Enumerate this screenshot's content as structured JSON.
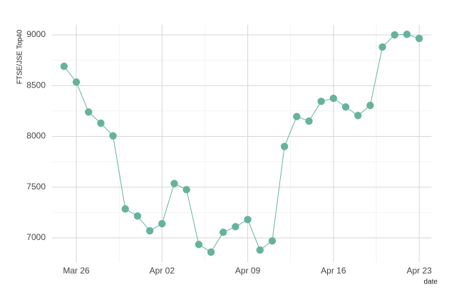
{
  "chart_data": {
    "type": "line",
    "x_label": "date",
    "y_label": "FTSE/JSE Top40",
    "x": [
      "03-25",
      "03-26",
      "03-27",
      "03-28",
      "03-29",
      "03-30",
      "03-31",
      "04-01",
      "04-02",
      "04-03",
      "04-04",
      "04-05",
      "04-06",
      "04-07",
      "04-08",
      "04-09",
      "04-10",
      "04-11",
      "04-12",
      "04-13",
      "04-14",
      "04-15",
      "04-16",
      "04-17",
      "04-18",
      "04-19",
      "04-20",
      "04-21",
      "04-22",
      "04-23"
    ],
    "series": [
      {
        "color": "#66b39a",
        "values": [
          8690,
          8535,
          8240,
          8130,
          8005,
          7285,
          7215,
          7070,
          7140,
          7535,
          7475,
          6935,
          6860,
          7055,
          7110,
          7180,
          6880,
          6970,
          7900,
          8195,
          8150,
          8345,
          8375,
          8290,
          8205,
          8305,
          8880,
          9000,
          9005,
          8965
        ]
      }
    ],
    "xlim": [
      "03-24",
      "04-24"
    ],
    "xticks": [
      {
        "value": "03-26",
        "label": "Mar 26"
      },
      {
        "value": "04-02",
        "label": "Apr 02"
      },
      {
        "value": "04-09",
        "label": "Apr 09"
      },
      {
        "value": "04-16",
        "label": "Apr 16"
      },
      {
        "value": "04-23",
        "label": "Apr 23"
      }
    ],
    "ylim": [
      6760,
      9100
    ],
    "yticks": [
      7000,
      7500,
      8000,
      8500,
      9000
    ],
    "grid": true
  }
}
